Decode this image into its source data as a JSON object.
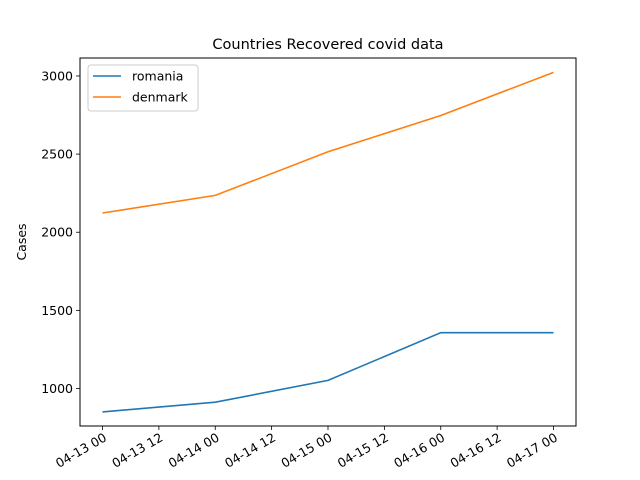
{
  "chart_data": {
    "type": "line",
    "title": "Countries Recovered covid data",
    "xlabel": "",
    "ylabel": "Cases",
    "x": [
      "2020-04-13",
      "2020-04-14",
      "2020-04-15",
      "2020-04-16",
      "2020-04-17"
    ],
    "xtick_labels": [
      "04-13 00",
      "04-13 12",
      "04-14 00",
      "04-14 12",
      "04-15 00",
      "04-15 12",
      "04-16 00",
      "04-16 12",
      "04-17 00"
    ],
    "yticks": [
      1000,
      1500,
      2000,
      2500,
      3000
    ],
    "ylim": [
      760,
      3115
    ],
    "grid": false,
    "legend": "top-left",
    "series": [
      {
        "name": "romania",
        "color": "#1f77b4",
        "values": [
          850,
          912,
          1052,
          1357,
          1357
        ]
      },
      {
        "name": "denmark",
        "color": "#ff7f0e",
        "values": [
          2123,
          2236,
          2515,
          2747,
          3023
        ]
      }
    ]
  }
}
